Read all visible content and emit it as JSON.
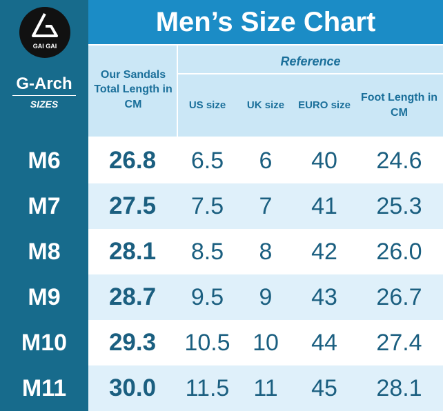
{
  "header": {
    "title": "Men’s Size Chart"
  },
  "logo": {
    "text": "GAI GAI"
  },
  "sidebar": {
    "title": "G-Arch",
    "subtitle": "SIZES"
  },
  "table": {
    "length_header": "Our Sandals Total Length in CM",
    "reference": "Reference",
    "columns": [
      "US size",
      "UK size",
      "EURO size",
      "Foot Length in CM"
    ],
    "rows": [
      [
        "M6",
        "26.8",
        "6.5",
        "6",
        "40",
        "24.6"
      ],
      [
        "M7",
        "27.5",
        "7.5",
        "7",
        "41",
        "25.3"
      ],
      [
        "M8",
        "28.1",
        "8.5",
        "8",
        "42",
        "26.0"
      ],
      [
        "M9",
        "28.7",
        "9.5",
        "9",
        "43",
        "26.7"
      ],
      [
        "M10",
        "29.3",
        "10.5",
        "10",
        "44",
        "27.4"
      ],
      [
        "M11",
        "30.0",
        "11.5",
        "11",
        "45",
        "28.1"
      ]
    ]
  }
}
